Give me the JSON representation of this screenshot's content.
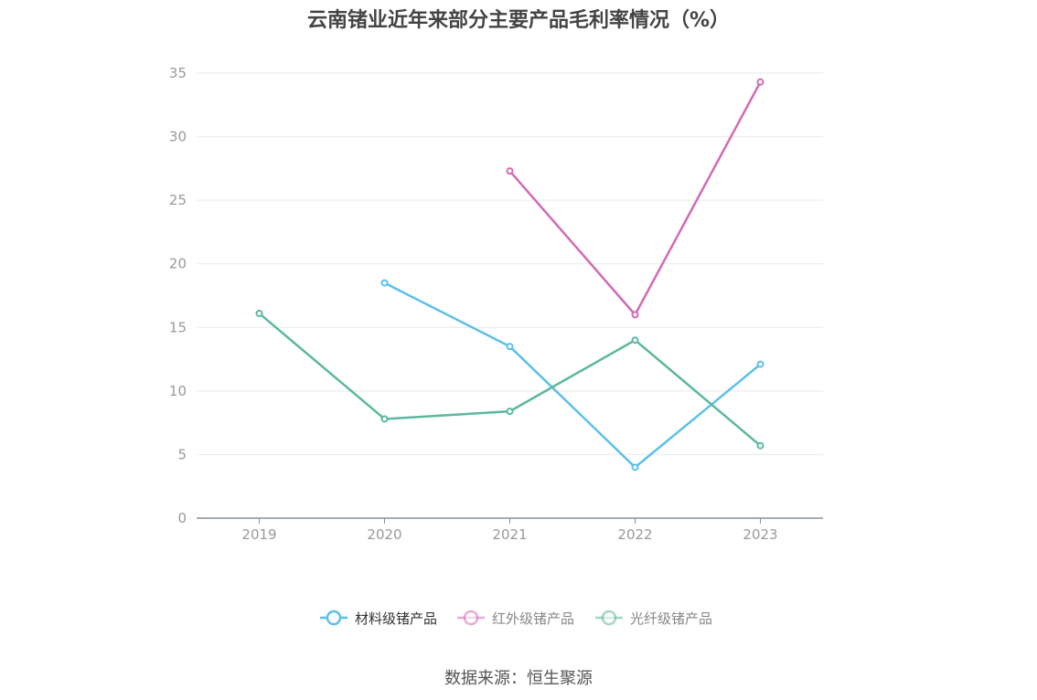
{
  "chart_data": {
    "type": "line",
    "title": "云南锗业近年来部分主要产品毛利率情况（%）",
    "categories": [
      "2019",
      "2020",
      "2021",
      "2022",
      "2023"
    ],
    "ylim": [
      0,
      35
    ],
    "yticks": [
      0,
      5,
      10,
      15,
      20,
      25,
      30,
      35
    ],
    "grid": true,
    "legend_position": "bottom",
    "series": [
      {
        "name": "材料级锗产品",
        "color": "#5bc0eb",
        "values": [
          null,
          18.5,
          13.5,
          4.0,
          12.1
        ]
      },
      {
        "name": "红外级锗产品",
        "color": "#d16bb5",
        "values": [
          null,
          null,
          27.3,
          16.0,
          34.3
        ]
      },
      {
        "name": "光纤级锗产品",
        "color": "#5bb89e",
        "values": [
          16.1,
          7.8,
          8.4,
          14.0,
          5.7
        ]
      }
    ]
  },
  "source": "数据来源：恒生聚源"
}
